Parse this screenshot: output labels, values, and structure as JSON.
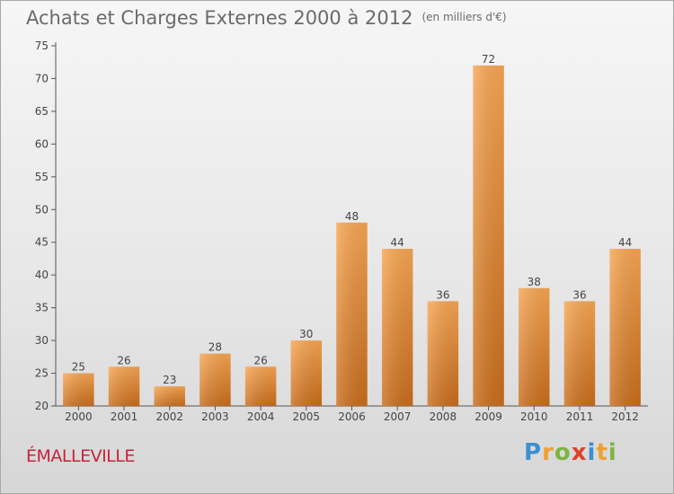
{
  "title": "Achats et Charges Externes 2000 à 2012",
  "subtitle": "(en milliers d'€)",
  "commune": "ÉMALLEVILLE",
  "logo": {
    "text": "Proxiti"
  },
  "colors": {
    "bar_top": "#f7a653",
    "bar_bottom": "#c96d1c",
    "title": "#6a6a6a",
    "commune": "#c8233c"
  },
  "chart_data": {
    "type": "bar",
    "title": "Achats et Charges Externes 2000 à 2012",
    "subtitle": "(en milliers d'€)",
    "categories": [
      "2000",
      "2001",
      "2002",
      "2003",
      "2004",
      "2005",
      "2006",
      "2007",
      "2008",
      "2009",
      "2010",
      "2011",
      "2012"
    ],
    "values": [
      25,
      26,
      23,
      28,
      26,
      30,
      48,
      44,
      36,
      72,
      38,
      36,
      44
    ],
    "ylim": [
      20,
      75
    ],
    "yticks": [
      20,
      25,
      30,
      35,
      40,
      45,
      50,
      55,
      60,
      65,
      70,
      75
    ],
    "grid": false,
    "data_labels": true,
    "xlabel": "",
    "ylabel": ""
  }
}
